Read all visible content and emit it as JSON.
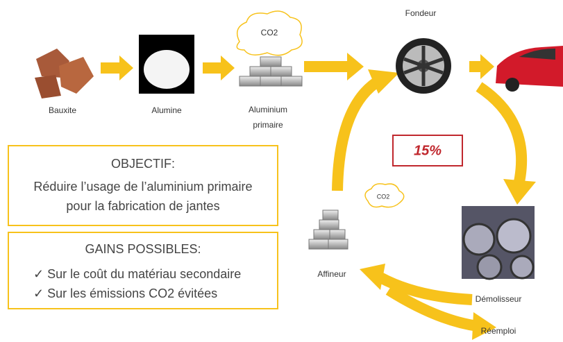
{
  "nodes": [
    {
      "label": "Bauxite"
    },
    {
      "label": "Alumine"
    },
    {
      "label": "Aluminium primaire"
    },
    {
      "label": "Fondeur"
    },
    {
      "label": "Affineur"
    },
    {
      "label": "Démolisseur"
    },
    {
      "label": "Réemploi"
    }
  ],
  "co2_labels": [
    "CO2",
    "CO2"
  ],
  "cycle_share": "15%",
  "objective": {
    "title": "OBJECTIF:",
    "lines": [
      "Réduire l’usage de l’aluminium primaire",
      "pour la fabrication de jantes"
    ]
  },
  "gains": {
    "title": "GAINS POSSIBLES:",
    "items": [
      "✓  Sur le coût du matériau secondaire",
      "✓  Sur les émissions CO2 évitées"
    ]
  }
}
